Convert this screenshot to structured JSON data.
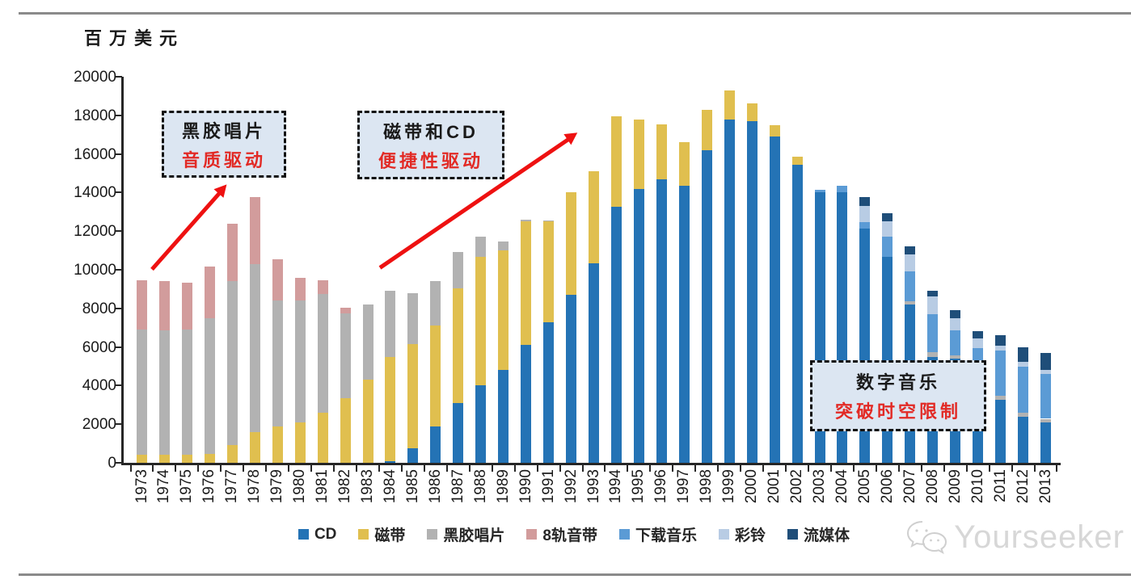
{
  "header": {
    "unit_label": "百万美元"
  },
  "chart_data": {
    "type": "bar",
    "subtype": "stacked",
    "title": "",
    "ylabel": "百万美元",
    "xlabel": "",
    "ylim": [
      0,
      20000
    ],
    "ytick_step": 2000,
    "grid": false,
    "legend_position": "bottom",
    "categories": [
      1973,
      1974,
      1975,
      1976,
      1977,
      1978,
      1979,
      1980,
      1981,
      1982,
      1983,
      1984,
      1985,
      1986,
      1987,
      1988,
      1989,
      1990,
      1991,
      1992,
      1993,
      1994,
      1995,
      1996,
      1997,
      1998,
      1999,
      2000,
      2001,
      2002,
      2003,
      2004,
      2005,
      2006,
      2007,
      2008,
      2009,
      2010,
      2011,
      2012,
      2013
    ],
    "series": [
      {
        "name": "CD",
        "color": "#2473B5",
        "values": [
          0,
          0,
          0,
          0,
          0,
          0,
          0,
          0,
          0,
          0,
          0,
          100,
          750,
          1900,
          3100,
          4000,
          4800,
          6100,
          7300,
          8700,
          10350,
          13250,
          14200,
          14700,
          14350,
          16200,
          17800,
          17700,
          16900,
          15450,
          14000,
          14000,
          12150,
          10650,
          8200,
          5500,
          5400,
          4530,
          3260,
          2375,
          2080
        ]
      },
      {
        "name": "磁带",
        "color": "#E0BF4F",
        "values": [
          400,
          400,
          400,
          450,
          900,
          1600,
          1900,
          2100,
          2600,
          3350,
          4300,
          5400,
          5400,
          5200,
          5950,
          6650,
          6200,
          6400,
          5200,
          5300,
          4750,
          4700,
          3600,
          2850,
          2250,
          2100,
          1500,
          900,
          600,
          400,
          0,
          0,
          0,
          0,
          0,
          0,
          0,
          0,
          0,
          0,
          0
        ]
      },
      {
        "name": "黑胶唱片",
        "color": "#B2B2B2",
        "values": [
          6500,
          6450,
          6500,
          7050,
          8500,
          8700,
          6500,
          6300,
          6150,
          4400,
          3900,
          3400,
          2650,
          2300,
          1850,
          1050,
          450,
          100,
          50,
          0,
          0,
          0,
          0,
          0,
          0,
          0,
          0,
          0,
          0,
          0,
          0,
          0,
          0,
          0,
          150,
          250,
          170,
          130,
          200,
          230,
          200
        ]
      },
      {
        "name": "8轨音带",
        "color": "#D29C9C",
        "values": [
          2550,
          2550,
          2450,
          2650,
          3000,
          3450,
          2150,
          1200,
          700,
          300,
          0,
          0,
          0,
          0,
          0,
          0,
          0,
          0,
          0,
          0,
          0,
          0,
          0,
          0,
          0,
          0,
          0,
          0,
          0,
          0,
          0,
          0,
          0,
          0,
          0,
          0,
          0,
          0,
          0,
          0,
          0
        ]
      },
      {
        "name": "下载音乐",
        "color": "#5B9BD5",
        "values": [
          0,
          0,
          0,
          0,
          0,
          0,
          0,
          0,
          0,
          0,
          0,
          0,
          0,
          0,
          0,
          0,
          0,
          0,
          0,
          0,
          0,
          0,
          0,
          0,
          0,
          0,
          0,
          0,
          0,
          0,
          150,
          350,
          300,
          1050,
          1550,
          1950,
          1290,
          1300,
          2375,
          2360,
          2330
        ]
      },
      {
        "name": "彩铃",
        "color": "#B8CCE4",
        "values": [
          0,
          0,
          0,
          0,
          0,
          0,
          0,
          0,
          0,
          0,
          0,
          0,
          0,
          0,
          0,
          0,
          0,
          0,
          0,
          0,
          0,
          0,
          0,
          0,
          0,
          0,
          0,
          0,
          0,
          0,
          0,
          0,
          875,
          800,
          875,
          900,
          625,
          500,
          250,
          270,
          200
        ]
      },
      {
        "name": "流媒体",
        "color": "#1F4E79",
        "values": [
          0,
          0,
          0,
          0,
          0,
          0,
          0,
          0,
          0,
          0,
          0,
          0,
          0,
          0,
          0,
          0,
          0,
          0,
          0,
          0,
          0,
          0,
          0,
          0,
          0,
          0,
          0,
          0,
          0,
          0,
          0,
          0,
          450,
          420,
          450,
          330,
          420,
          375,
          540,
          750,
          875
        ]
      }
    ]
  },
  "annotations": [
    {
      "line1": "黑胶唱片",
      "line2": "音质驱动"
    },
    {
      "line1": "磁带和CD",
      "line2": "便捷性驱动"
    },
    {
      "line1": "数字音乐",
      "line2": "突破时空限制"
    }
  ],
  "watermark": {
    "text": "Yourseeker",
    "icon": "wechat-icon"
  }
}
